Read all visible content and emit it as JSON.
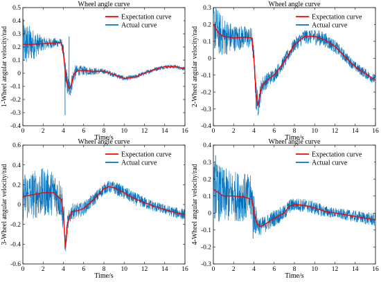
{
  "chart_data": [
    {
      "type": "line",
      "title": "Wheel angle curve",
      "xlabel": "Time/s",
      "ylabel": "1-Wheel angular velocity/rad",
      "xlim": [
        0,
        16
      ],
      "ylim": [
        -0.4,
        0.5
      ],
      "xticks": [
        0,
        2,
        4,
        6,
        8,
        10,
        12,
        14,
        16
      ],
      "yticks": [
        -0.4,
        -0.3,
        -0.2,
        -0.1,
        0,
        0.1,
        0.2,
        0.3,
        0.4,
        0.5
      ],
      "legend_position": "top-right",
      "series": [
        {
          "name": "Expectation curve",
          "color": "#ff0000",
          "x": [
            0,
            1,
            2,
            3,
            3.8,
            4.0,
            4.2,
            4.4,
            4.6,
            4.8,
            5.0,
            5.2,
            5.5,
            6,
            7,
            8,
            9,
            10,
            11,
            12,
            13,
            14,
            15,
            16
          ],
          "y": [
            0.22,
            0.22,
            0.225,
            0.23,
            0.235,
            0.15,
            0.0,
            -0.09,
            -0.12,
            -0.08,
            -0.02,
            0.01,
            0.02,
            0.02,
            0.015,
            0.015,
            -0.01,
            -0.04,
            -0.03,
            0.0,
            0.03,
            0.05,
            0.05,
            0.035
          ]
        },
        {
          "name": "Actual curve",
          "color": "#0072bd",
          "noise_envelope": [
            [
              0,
              0.2
            ],
            [
              1,
              0.12
            ],
            [
              2,
              0.05
            ],
            [
              3,
              0.04
            ],
            [
              3.8,
              0.03
            ],
            [
              4.2,
              0.1
            ],
            [
              4.6,
              0.08
            ],
            [
              5.5,
              0.04
            ],
            [
              8,
              0.02
            ],
            [
              16,
              0.015
            ]
          ],
          "spikes": [
            {
              "x": 4.15,
              "y": -0.32
            },
            {
              "x": 4.55,
              "y": 0.28
            }
          ]
        }
      ]
    },
    {
      "type": "line",
      "title": "Wheel angle curve",
      "xlabel": "Time/s",
      "ylabel": "2-Wheel angular velocity/rad",
      "xlim": [
        0,
        16
      ],
      "ylim": [
        -0.4,
        0.3
      ],
      "xticks": [
        0,
        2,
        4,
        6,
        8,
        10,
        12,
        14,
        16
      ],
      "yticks": [
        -0.4,
        -0.3,
        -0.2,
        -0.1,
        0,
        0.1,
        0.2,
        0.3
      ],
      "legend_position": "top-right",
      "series": [
        {
          "name": "Expectation curve",
          "color": "#ff0000",
          "x": [
            0,
            0.5,
            1,
            2,
            3,
            3.8,
            4.0,
            4.2,
            4.4,
            4.8,
            5.5,
            6,
            7,
            8,
            9,
            10,
            11,
            12,
            13,
            14,
            15,
            16
          ],
          "y": [
            0.2,
            0.15,
            0.13,
            0.12,
            0.125,
            0.12,
            0.0,
            -0.2,
            -0.28,
            -0.16,
            -0.12,
            -0.1,
            -0.02,
            0.08,
            0.13,
            0.13,
            0.11,
            0.07,
            0.01,
            -0.05,
            -0.09,
            -0.13
          ]
        },
        {
          "name": "Actual curve",
          "color": "#0072bd",
          "noise_envelope": [
            [
              0,
              0.15
            ],
            [
              1,
              0.12
            ],
            [
              2,
              0.08
            ],
            [
              4,
              0.06
            ],
            [
              4.2,
              0.08
            ],
            [
              5,
              0.05
            ],
            [
              6,
              0.04
            ],
            [
              8,
              0.04
            ],
            [
              10,
              0.05
            ],
            [
              12,
              0.04
            ],
            [
              14,
              0.03
            ],
            [
              16,
              0.03
            ]
          ],
          "spikes": [
            {
              "x": 4.2,
              "y": -0.3
            }
          ]
        }
      ]
    },
    {
      "type": "line",
      "title": "Wheel angle curve",
      "xlabel": "Time/s",
      "ylabel": "3-Wheel angular velocity/rad",
      "xlim": [
        0,
        16
      ],
      "ylim": [
        -0.6,
        0.6
      ],
      "xticks": [
        0,
        2,
        4,
        6,
        8,
        10,
        12,
        14,
        16
      ],
      "yticks": [
        -0.6,
        -0.4,
        -0.2,
        0,
        0.2,
        0.4,
        0.6
      ],
      "legend_position": "top-right",
      "series": [
        {
          "name": "Expectation curve",
          "color": "#ff0000",
          "x": [
            0,
            1,
            2,
            3,
            3.8,
            4.0,
            4.2,
            4.4,
            4.8,
            5.5,
            6,
            7,
            8,
            8.5,
            9,
            10,
            11,
            12,
            13,
            14,
            15,
            16
          ],
          "y": [
            0.08,
            0.1,
            0.12,
            0.12,
            0.05,
            -0.1,
            -0.43,
            -0.2,
            -0.07,
            -0.06,
            -0.04,
            0.05,
            0.16,
            0.18,
            0.17,
            0.12,
            0.06,
            0.02,
            -0.02,
            -0.05,
            -0.08,
            -0.1
          ]
        },
        {
          "name": "Actual curve",
          "color": "#0072bd",
          "noise_envelope": [
            [
              0,
              0.25
            ],
            [
              2,
              0.25
            ],
            [
              4,
              0.2
            ],
            [
              4.2,
              0.1
            ],
            [
              5,
              0.08
            ],
            [
              6,
              0.07
            ],
            [
              8,
              0.06
            ],
            [
              10,
              0.07
            ],
            [
              12,
              0.06
            ],
            [
              14,
              0.05
            ],
            [
              16,
              0.06
            ]
          ],
          "spikes": [
            {
              "x": 4.2,
              "y": -0.44
            }
          ]
        }
      ]
    },
    {
      "type": "line",
      "title": "Wheel angle curve",
      "xlabel": "Time/s",
      "ylabel": "4-Wheel angular velocity/rad",
      "xlim": [
        0,
        16
      ],
      "ylim": [
        -0.3,
        0.4
      ],
      "xticks": [
        0,
        2,
        4,
        6,
        8,
        10,
        12,
        14,
        16
      ],
      "yticks": [
        -0.3,
        -0.2,
        -0.1,
        0,
        0.1,
        0.2,
        0.3,
        0.4
      ],
      "legend_position": "top-right",
      "series": [
        {
          "name": "Expectation curve",
          "color": "#ff0000",
          "x": [
            0,
            0.5,
            1,
            2,
            3,
            3.8,
            4.0,
            4.3,
            4.6,
            5,
            5.5,
            6,
            7,
            7.5,
            8,
            9,
            10,
            11,
            12,
            13,
            14,
            15,
            16
          ],
          "y": [
            0.14,
            0.12,
            0.1,
            0.1,
            0.095,
            0.08,
            0.0,
            -0.06,
            -0.08,
            -0.07,
            -0.05,
            -0.03,
            0.0,
            0.04,
            0.05,
            0.045,
            0.03,
            0.01,
            0.0,
            -0.01,
            -0.02,
            -0.03,
            -0.04
          ]
        },
        {
          "name": "Actual curve",
          "color": "#0072bd",
          "noise_envelope": [
            [
              0,
              0.18
            ],
            [
              2,
              0.15
            ],
            [
              4,
              0.14
            ],
            [
              4.3,
              0.06
            ],
            [
              5,
              0.05
            ],
            [
              6,
              0.05
            ],
            [
              8,
              0.04
            ],
            [
              10,
              0.04
            ],
            [
              12,
              0.03
            ],
            [
              14,
              0.035
            ],
            [
              16,
              0.04
            ]
          ],
          "spikes": [
            {
              "x": 0.2,
              "y": 0.34
            },
            {
              "x": 3.9,
              "y": -0.15
            }
          ]
        }
      ]
    }
  ]
}
